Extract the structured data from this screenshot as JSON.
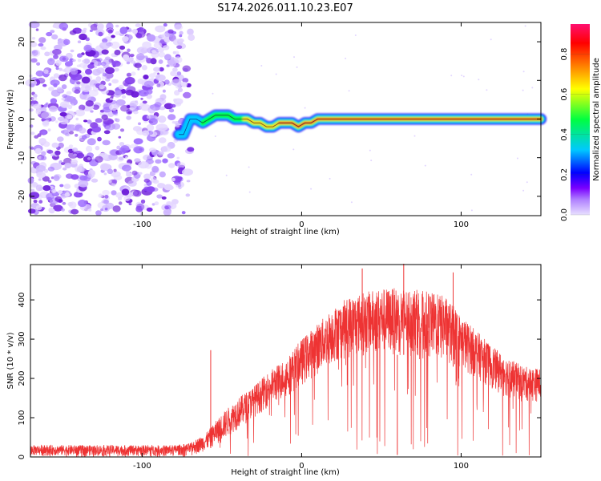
{
  "title": "S174.2026.011.10.23.E07",
  "chart_data": [
    {
      "type": "heatmap",
      "name": "spectrogram",
      "xlabel": "Height of straight line (km)",
      "ylabel": "Frequency (Hz)",
      "xlim": [
        -170,
        150
      ],
      "ylim": [
        -25,
        25
      ],
      "xticks": [
        -100,
        0,
        100
      ],
      "yticks": [
        -20,
        -10,
        0,
        10,
        20
      ],
      "colorbar": {
        "label": "Normalized spectral amplitude",
        "range": [
          0,
          0.95
        ],
        "ticks": [
          0,
          0.2,
          0.4,
          0.6,
          0.8
        ],
        "tick_labels": [
          "0.0",
          "0.2",
          "0.4",
          "0.6",
          "0.8"
        ],
        "colormap": [
          "#e8e0ff",
          "#7a00ff",
          "#0000ff",
          "#00c8ff",
          "#00ff40",
          "#ffff00",
          "#ff8000",
          "#ff0000",
          "#ff1070"
        ]
      },
      "noise_region": {
        "x_from": -170,
        "x_to": -75,
        "freq_from": -25,
        "freq_to": 25,
        "amplitude": "low (0.0-0.2)"
      },
      "ridge": {
        "x": [
          -77,
          -74,
          -72,
          -70,
          -66,
          -62,
          -58,
          -54,
          -50,
          -46,
          -42,
          -38,
          -34,
          -30,
          -26,
          -22,
          -18,
          -14,
          -10,
          -6,
          -2,
          2,
          6,
          10,
          20,
          40,
          60,
          80,
          100,
          120,
          140,
          150
        ],
        "freq": [
          -4,
          -4,
          -2,
          0,
          0,
          -1,
          0,
          1,
          1,
          1,
          0,
          0,
          0,
          -1,
          -1,
          -2,
          -2,
          -1,
          -1,
          -1,
          -2,
          -1,
          -1,
          0,
          0,
          0,
          0,
          0,
          0,
          0,
          0,
          0
        ],
        "amplitude": [
          0.3,
          0.35,
          0.4,
          0.4,
          0.5,
          0.55,
          0.55,
          0.6,
          0.6,
          0.65,
          0.7,
          0.7,
          0.75,
          0.75,
          0.8,
          0.8,
          0.8,
          0.85,
          0.85,
          0.9,
          0.9,
          0.9,
          0.9,
          0.9,
          0.9,
          0.9,
          0.9,
          0.9,
          0.9,
          0.9,
          0.9,
          0.9
        ]
      }
    },
    {
      "type": "line",
      "name": "snr",
      "xlabel": "Height of straight line (km)",
      "ylabel": "SNR (10 * v/v)",
      "xlim": [
        -170,
        150
      ],
      "ylim": [
        0,
        490
      ],
      "xticks": [
        -100,
        0,
        100
      ],
      "yticks": [
        0,
        100,
        200,
        300,
        400
      ],
      "color": "#ee3333",
      "envelope": {
        "x": [
          -170,
          -150,
          -100,
          -80,
          -70,
          -60,
          -50,
          -40,
          -30,
          -20,
          -10,
          0,
          10,
          20,
          30,
          40,
          50,
          60,
          70,
          80,
          90,
          100,
          110,
          120,
          130,
          140,
          150
        ],
        "low": [
          3,
          3,
          3,
          3,
          5,
          15,
          40,
          70,
          100,
          130,
          150,
          180,
          210,
          240,
          250,
          260,
          260,
          260,
          260,
          250,
          240,
          220,
          200,
          170,
          150,
          140,
          140
        ],
        "high": [
          30,
          30,
          30,
          30,
          35,
          60,
          110,
          150,
          180,
          220,
          250,
          300,
          340,
          380,
          410,
          420,
          430,
          430,
          430,
          420,
          410,
          360,
          320,
          280,
          250,
          230,
          225
        ]
      },
      "spikes": [
        {
          "x": -57,
          "y": 272
        },
        {
          "x": 38,
          "y": 480
        },
        {
          "x": 64,
          "y": 492
        },
        {
          "x": 60,
          "y": 5
        },
        {
          "x": 95,
          "y": 470
        }
      ]
    }
  ]
}
